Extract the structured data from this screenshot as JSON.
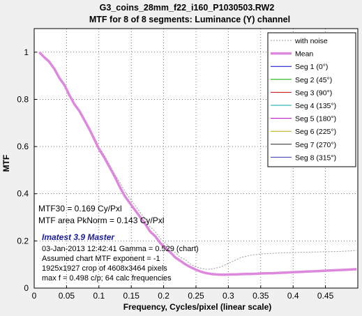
{
  "header": {
    "title": "G3_coins_28mm_f22_i160_P1030503.RW2",
    "subtitle": "MTF for 8 of 8 segments:  Luminance (Y) channel"
  },
  "annotations": {
    "mtf30": "MTF30 = 0.169 Cy/Pxl",
    "mtf_area": "MTF area PkNorm = 0.143 Cy/Pxl",
    "brand": "Imatest 3.9 Master",
    "date_gamma": "03-Jan-2013 12:42:41    Gamma = 0.529 (chart)",
    "exponent": "Assumed chart MTF exponent = -1",
    "crop": "1925x1927 crop of 4608x3464 pixels",
    "maxf": "max f = 0.498 c/p;  64 calc frequencies"
  },
  "chart_data": {
    "type": "line",
    "title": "G3_coins_28mm_f22_i160_P1030503.RW2",
    "subtitle": "MTF for 8 of 8 segments:  Luminance (Y) channel",
    "xlabel": "Frequency, Cycles/pixel (linear scale)",
    "ylabel": "MTF",
    "xlim": [
      0,
      0.5
    ],
    "ylim": [
      0,
      1.1
    ],
    "x_ticks": [
      "0",
      "0.05",
      "0.1",
      "0.15",
      "0.2",
      "0.25",
      "0.3",
      "0.35",
      "0.4",
      "0.45"
    ],
    "y_ticks": [
      "0",
      "0.2",
      "0.4",
      "0.6",
      "0.8",
      "1"
    ],
    "grid": "dotted",
    "legend_position": "top-right",
    "legend": [
      {
        "label": "with noise",
        "color": "#999999",
        "style": "dotted"
      },
      {
        "label": "Mean",
        "color": "#dd88dd",
        "style": "thick"
      },
      {
        "label": "Seg 1 (0°)",
        "color": "#0000cc",
        "style": "solid"
      },
      {
        "label": "Seg 2 (45°)",
        "color": "#00aa00",
        "style": "solid"
      },
      {
        "label": "Seg 3 (90°)",
        "color": "#cc0000",
        "style": "solid"
      },
      {
        "label": "Seg 4 (135°)",
        "color": "#00aaaa",
        "style": "solid"
      },
      {
        "label": "Seg 5 (180°)",
        "color": "#bb00bb",
        "style": "solid"
      },
      {
        "label": "Seg 6 (225°)",
        "color": "#bbaa00",
        "style": "solid"
      },
      {
        "label": "Seg 7 (270°)",
        "color": "#222222",
        "style": "solid"
      },
      {
        "label": "Seg 8 (315°)",
        "color": "#3333aa",
        "style": "solid"
      }
    ],
    "x": [
      0.008,
      0.015,
      0.023,
      0.031,
      0.039,
      0.047,
      0.054,
      0.062,
      0.07,
      0.078,
      0.086,
      0.093,
      0.1,
      0.109,
      0.117,
      0.125,
      0.132,
      0.14,
      0.148,
      0.156,
      0.164,
      0.172,
      0.179,
      0.187,
      0.195,
      0.203,
      0.211,
      0.218,
      0.226,
      0.234,
      0.242,
      0.25,
      0.257,
      0.265,
      0.273,
      0.281,
      0.289,
      0.296,
      0.304,
      0.312,
      0.32,
      0.328,
      0.335,
      0.343,
      0.351,
      0.359,
      0.367,
      0.374,
      0.382,
      0.39,
      0.398,
      0.406,
      0.413,
      0.421,
      0.429,
      0.437,
      0.445,
      0.452,
      0.46,
      0.468,
      0.476,
      0.484,
      0.491,
      0.498
    ],
    "series": [
      {
        "name": "with noise",
        "values": [
          1.0,
          0.98,
          0.96,
          0.93,
          0.89,
          0.86,
          0.82,
          0.78,
          0.75,
          0.71,
          0.67,
          0.64,
          0.6,
          0.56,
          0.52,
          0.48,
          0.45,
          0.41,
          0.38,
          0.35,
          0.32,
          0.29,
          0.26,
          0.24,
          0.21,
          0.19,
          0.17,
          0.15,
          0.13,
          0.12,
          0.1,
          0.09,
          0.085,
          0.08,
          0.08,
          0.085,
          0.09,
          0.1,
          0.11,
          0.12,
          0.13,
          0.135,
          0.14,
          0.142,
          0.145,
          0.146,
          0.147,
          0.148,
          0.149,
          0.15,
          0.15,
          0.151,
          0.152,
          0.152,
          0.153,
          0.153,
          0.154,
          0.154,
          0.155,
          0.155,
          0.156,
          0.157,
          0.158,
          0.16
        ]
      },
      {
        "name": "Mean",
        "values": [
          1.0,
          0.98,
          0.96,
          0.93,
          0.89,
          0.86,
          0.82,
          0.78,
          0.75,
          0.71,
          0.67,
          0.63,
          0.59,
          0.55,
          0.51,
          0.47,
          0.43,
          0.39,
          0.36,
          0.33,
          0.3,
          0.27,
          0.24,
          0.22,
          0.19,
          0.17,
          0.15,
          0.13,
          0.115,
          0.1,
          0.088,
          0.078,
          0.07,
          0.064,
          0.06,
          0.058,
          0.057,
          0.057,
          0.058,
          0.058,
          0.059,
          0.06,
          0.06,
          0.061,
          0.062,
          0.063,
          0.063,
          0.064,
          0.065,
          0.066,
          0.067,
          0.068,
          0.069,
          0.07,
          0.071,
          0.072,
          0.073,
          0.074,
          0.075,
          0.076,
          0.077,
          0.078,
          0.079,
          0.08
        ]
      }
    ]
  }
}
